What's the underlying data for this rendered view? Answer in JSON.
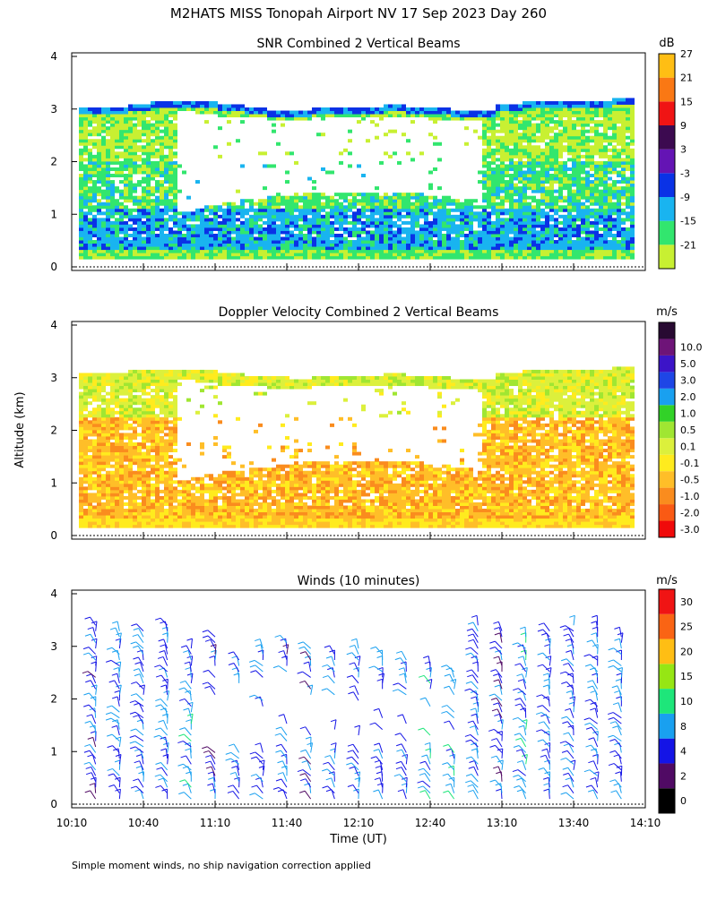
{
  "page": {
    "title": "M2HATS MISS Tonopah Airport NV  17 Sep 2023 Day 260",
    "shared_ylabel": "Altitude (km)",
    "shared_xlabel": "Time (UT)",
    "footnote": "Simple moment winds, no ship navigation correction applied"
  },
  "chart_data": [
    {
      "type": "heatmap",
      "title": "SNR Combined 2 Vertical Beams",
      "xlim": [
        "10:10",
        "14:10"
      ],
      "ylim": [
        0,
        4
      ],
      "yticks": [
        "0",
        "1",
        "2",
        "3",
        "4"
      ],
      "xtick_labels": [],
      "colorbar": {
        "unit": "dB",
        "labels": [
          "-21",
          "-15",
          "-9",
          "-3",
          "3",
          "9",
          "15",
          "21",
          "27"
        ],
        "colors": [
          "#c8f032",
          "#32e66e",
          "#19b4f0",
          "#0a32e6",
          "#6414b4",
          "#3c0a50",
          "#f01414",
          "#fa7814",
          "#ffbe14"
        ]
      },
      "echo_top_km": [
        3.0,
        3.0,
        3.05,
        3.1,
        3.12,
        3.1,
        3.05,
        3.0,
        2.95,
        2.95,
        3.0,
        3.0,
        3.0,
        3.05,
        3.0,
        2.98,
        2.95,
        2.95,
        3.05,
        3.1,
        3.15,
        3.15,
        3.15,
        3.2
      ],
      "dominant_class_by_height": [
        {
          "altitude_km": 0.2,
          "value_db": -15
        },
        {
          "altitude_km": 0.8,
          "value_db": -9
        },
        {
          "altitude_km": 1.5,
          "value_db": -15
        },
        {
          "altitude_km": 2.5,
          "value_db": -21
        },
        {
          "altitude_km": 3.0,
          "value_db": -3
        }
      ],
      "legend_position": "right"
    },
    {
      "type": "heatmap",
      "title": "Doppler Velocity Combined 2 Vertical Beams",
      "xlim": [
        "10:10",
        "14:10"
      ],
      "ylim": [
        0,
        4
      ],
      "yticks": [
        "0",
        "1",
        "2",
        "3",
        "4"
      ],
      "xtick_labels": [],
      "colorbar": {
        "unit": "m/s",
        "labels": [
          "-3.0",
          "-2.0",
          "-1.0",
          "-0.5",
          "-0.1",
          "0.1",
          "0.5",
          "1.0",
          "2.0",
          "3.0",
          "5.0",
          "10.0"
        ],
        "colors": [
          "#f00a0a",
          "#fa5a14",
          "#fa8c1e",
          "#ffbe28",
          "#ffeb1e",
          "#dcf03c",
          "#a0e632",
          "#32d228",
          "#19a0f0",
          "#1e46e6",
          "#3c14c8",
          "#6e1478",
          "#280a32"
        ]
      },
      "echo_top_km": [
        3.05,
        3.05,
        3.1,
        3.1,
        3.12,
        3.1,
        3.05,
        3.0,
        2.98,
        2.95,
        3.0,
        3.0,
        3.0,
        3.05,
        3.0,
        2.98,
        2.95,
        2.95,
        3.05,
        3.1,
        3.15,
        3.15,
        3.15,
        3.2
      ],
      "dominant_class_by_height": [
        {
          "altitude_km": 0.2,
          "value_ms": -0.3
        },
        {
          "altitude_km": 0.8,
          "value_ms": -0.7
        },
        {
          "altitude_km": 1.5,
          "value_ms": -0.5
        },
        {
          "altitude_km": 2.5,
          "value_ms": 0.3
        },
        {
          "altitude_km": 3.0,
          "value_ms": 0.3
        }
      ],
      "legend_position": "right"
    },
    {
      "type": "scatter",
      "title": "Winds (10 minutes)",
      "xlim": [
        "10:10",
        "14:10"
      ],
      "xticks": [
        "10:10",
        "10:40",
        "11:10",
        "11:40",
        "12:10",
        "12:40",
        "13:10",
        "13:40",
        "14:10"
      ],
      "ylim": [
        0,
        4
      ],
      "yticks": [
        "0",
        "1",
        "2",
        "3",
        "4"
      ],
      "profile_times": [
        "10:20",
        "10:30",
        "10:40",
        "10:50",
        "11:00",
        "11:10",
        "11:20",
        "11:30",
        "11:40",
        "11:50",
        "12:00",
        "12:10",
        "12:20",
        "12:30",
        "12:40",
        "12:50",
        "13:00",
        "13:10",
        "13:20",
        "13:30",
        "13:40",
        "13:50",
        "14:00"
      ],
      "profile_top_km": [
        3.4,
        3.3,
        3.3,
        3.4,
        3.0,
        3.2,
        2.8,
        3.0,
        3.1,
        3.0,
        2.9,
        3.0,
        2.9,
        2.8,
        2.7,
        2.6,
        3.4,
        3.3,
        3.2,
        3.3,
        3.4,
        3.5,
        3.2
      ],
      "typical_speed_ms": [
        5,
        6,
        6,
        6,
        7,
        5,
        6,
        6,
        5,
        5,
        6,
        6,
        6,
        6,
        7,
        8,
        6,
        5,
        7,
        6,
        6,
        6,
        6
      ],
      "colorbar": {
        "unit": "m/s",
        "labels": [
          "0",
          "2",
          "4",
          "8",
          "10",
          "15",
          "20",
          "25",
          "30"
        ],
        "colors": [
          "#000000",
          "#500a64",
          "#1414e6",
          "#19a0f0",
          "#1ee67a",
          "#96e614",
          "#ffbe14",
          "#fa6414",
          "#f01414"
        ]
      },
      "legend_position": "right"
    }
  ]
}
